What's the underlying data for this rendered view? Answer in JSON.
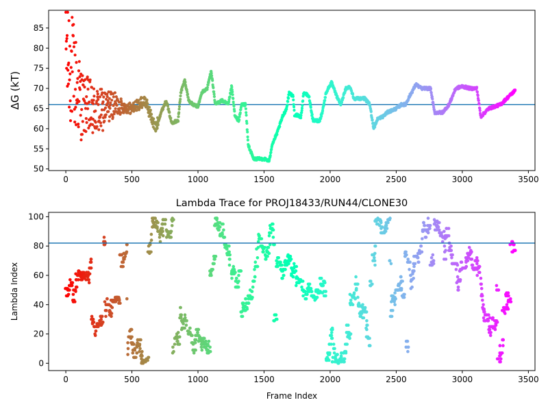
{
  "figure": {
    "background": "#ffffff"
  },
  "chart_data": [
    {
      "type": "scatter",
      "title": "",
      "xlabel": "",
      "ylabel": "ΔG (kT)",
      "xlim": [
        -130,
        3550
      ],
      "ylim": [
        49.6,
        89.4
      ],
      "xticks": [
        0,
        500,
        1000,
        1500,
        2000,
        2500,
        3000,
        3500
      ],
      "xtick_labels": [
        "0",
        "500",
        "1000",
        "1500",
        "2000",
        "2500",
        "3000",
        "3500"
      ],
      "yticks": [
        50,
        55,
        60,
        65,
        70,
        75,
        80,
        85
      ],
      "ytick_labels": [
        "50",
        "55",
        "60",
        "65",
        "70",
        "75",
        "80",
        "85"
      ],
      "hline": {
        "y": 66.0,
        "color": "#1f77b4"
      },
      "color_map": "rainbow (red at frame 0 to purple at frame 3400)",
      "frames": [
        0,
        3400
      ],
      "grid": false,
      "legend": "none",
      "trace_keypoints": [
        {
          "x": 0,
          "y": 80
        },
        {
          "x": 120,
          "y": 66
        },
        {
          "x": 160,
          "y": 65
        },
        {
          "x": 250,
          "y": 64
        },
        {
          "x": 350,
          "y": 66
        },
        {
          "x": 500,
          "y": 65
        },
        {
          "x": 600,
          "y": 67
        },
        {
          "x": 680,
          "y": 60
        },
        {
          "x": 720,
          "y": 64
        },
        {
          "x": 760,
          "y": 67
        },
        {
          "x": 800,
          "y": 61.5
        },
        {
          "x": 850,
          "y": 62
        },
        {
          "x": 870,
          "y": 69
        },
        {
          "x": 900,
          "y": 72
        },
        {
          "x": 930,
          "y": 67
        },
        {
          "x": 960,
          "y": 66
        },
        {
          "x": 1000,
          "y": 65.5
        },
        {
          "x": 1030,
          "y": 69
        },
        {
          "x": 1070,
          "y": 70
        },
        {
          "x": 1100,
          "y": 74.5
        },
        {
          "x": 1130,
          "y": 66
        },
        {
          "x": 1180,
          "y": 67
        },
        {
          "x": 1230,
          "y": 66
        },
        {
          "x": 1255,
          "y": 70.5
        },
        {
          "x": 1280,
          "y": 63
        },
        {
          "x": 1310,
          "y": 62
        },
        {
          "x": 1330,
          "y": 66
        },
        {
          "x": 1360,
          "y": 66
        },
        {
          "x": 1380,
          "y": 56
        },
        {
          "x": 1420,
          "y": 52.5
        },
        {
          "x": 1500,
          "y": 52.5
        },
        {
          "x": 1540,
          "y": 52
        },
        {
          "x": 1560,
          "y": 56
        },
        {
          "x": 1600,
          "y": 59
        },
        {
          "x": 1640,
          "y": 63
        },
        {
          "x": 1670,
          "y": 65
        },
        {
          "x": 1690,
          "y": 69
        },
        {
          "x": 1720,
          "y": 68
        },
        {
          "x": 1730,
          "y": 63.5
        },
        {
          "x": 1780,
          "y": 63
        },
        {
          "x": 1800,
          "y": 69
        },
        {
          "x": 1840,
          "y": 68
        },
        {
          "x": 1870,
          "y": 62
        },
        {
          "x": 1920,
          "y": 62
        },
        {
          "x": 1940,
          "y": 64
        },
        {
          "x": 1970,
          "y": 69
        },
        {
          "x": 2010,
          "y": 71.5
        },
        {
          "x": 2050,
          "y": 68
        },
        {
          "x": 2080,
          "y": 66
        },
        {
          "x": 2120,
          "y": 70
        },
        {
          "x": 2150,
          "y": 70.5
        },
        {
          "x": 2180,
          "y": 67.5
        },
        {
          "x": 2260,
          "y": 67.5
        },
        {
          "x": 2300,
          "y": 66
        },
        {
          "x": 2330,
          "y": 60
        },
        {
          "x": 2360,
          "y": 62.5
        },
        {
          "x": 2400,
          "y": 63
        },
        {
          "x": 2430,
          "y": 64
        },
        {
          "x": 2500,
          "y": 65
        },
        {
          "x": 2540,
          "y": 66
        },
        {
          "x": 2570,
          "y": 66
        },
        {
          "x": 2600,
          "y": 68
        },
        {
          "x": 2650,
          "y": 71
        },
        {
          "x": 2690,
          "y": 70
        },
        {
          "x": 2760,
          "y": 70
        },
        {
          "x": 2790,
          "y": 64
        },
        {
          "x": 2850,
          "y": 64
        },
        {
          "x": 2900,
          "y": 66
        },
        {
          "x": 2950,
          "y": 70
        },
        {
          "x": 3000,
          "y": 70.5
        },
        {
          "x": 3060,
          "y": 70
        },
        {
          "x": 3110,
          "y": 70
        },
        {
          "x": 3140,
          "y": 63
        },
        {
          "x": 3200,
          "y": 65
        },
        {
          "x": 3290,
          "y": 66
        },
        {
          "x": 3320,
          "y": 67
        },
        {
          "x": 3400,
          "y": 69.5
        }
      ]
    },
    {
      "type": "scatter",
      "title": "Lambda Trace for PROJ18433/RUN44/CLONE30",
      "xlabel": "Frame Index",
      "ylabel": "Lambda Index",
      "xlim": [
        -130,
        3550
      ],
      "ylim": [
        -5,
        103
      ],
      "xticks": [
        0,
        500,
        1000,
        1500,
        2000,
        2500,
        3000,
        3500
      ],
      "xtick_labels": [
        "0",
        "500",
        "1000",
        "1500",
        "2000",
        "2500",
        "3000",
        "3500"
      ],
      "yticks": [
        0,
        20,
        40,
        60,
        80,
        100
      ],
      "ytick_labels": [
        "0",
        "20",
        "40",
        "60",
        "80",
        "100"
      ],
      "hline": {
        "y": 82,
        "color": "#1f77b4"
      },
      "color_map": "rainbow (red at frame 0 to purple at frame 3400)",
      "frames": [
        0,
        3400
      ],
      "lambda_range": [
        0,
        99
      ],
      "grid": false,
      "legend": "none"
    }
  ]
}
